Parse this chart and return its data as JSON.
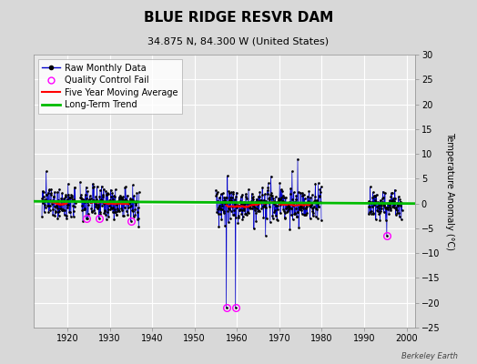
{
  "title": "BLUE RIDGE RESVR DAM",
  "subtitle": "34.875 N, 84.300 W (United States)",
  "ylabel": "Temperature Anomaly (°C)",
  "credit": "Berkeley Earth",
  "ylim": [
    -25,
    30
  ],
  "yticks": [
    -25,
    -20,
    -15,
    -10,
    -5,
    0,
    5,
    10,
    15,
    20,
    25,
    30
  ],
  "xlim": [
    1912,
    2002
  ],
  "xticks": [
    1920,
    1930,
    1940,
    1950,
    1960,
    1970,
    1980,
    1990,
    2000
  ],
  "bg_color": "#d8d8d8",
  "plot_bg_color": "#e8e8e8",
  "grid_color": "#ffffff",
  "raw_color": "#0000cc",
  "raw_dot_color": "#000000",
  "qc_fail_color": "#ff00ff",
  "moving_avg_color": "#ff0000",
  "trend_color": "#00bb00",
  "trend_slope": -0.005,
  "trend_intercept_at1960": 0.2,
  "legend_fontsize": 7,
  "title_fontsize": 11,
  "subtitle_fontsize": 8,
  "tick_fontsize": 7,
  "ylabel_fontsize": 7
}
